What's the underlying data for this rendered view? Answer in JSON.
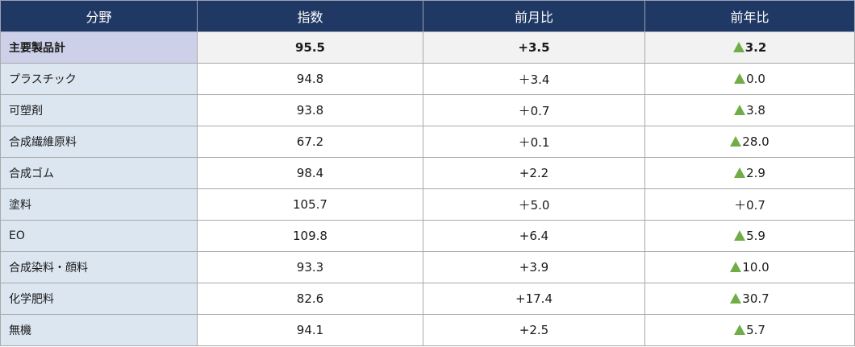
{
  "table": {
    "headers": [
      "分野",
      "指数",
      "前月比",
      "前年比"
    ],
    "rows": [
      {
        "name": "主要製品計",
        "index": "95.5",
        "mom": "+3.5",
        "yoy": "3.2",
        "yoy_up": true,
        "total": true
      },
      {
        "name": "プラスチック",
        "index": "94.8",
        "mom": "＋3.4",
        "yoy": "0.0",
        "yoy_up": true
      },
      {
        "name": "可塑剤",
        "index": "93.8",
        "mom": "＋0.7",
        "yoy": "3.8",
        "yoy_up": true
      },
      {
        "name": "合成繊維原料",
        "index": "67.2",
        "mom": "＋0.1",
        "yoy": "28.0",
        "yoy_up": true
      },
      {
        "name": "合成ゴム",
        "index": "98.4",
        "mom": "+2.2",
        "yoy": "2.9",
        "yoy_up": true
      },
      {
        "name": "塗料",
        "index": "105.7",
        "mom": "＋5.0",
        "yoy": "＋0.7",
        "yoy_up": false
      },
      {
        "name": "EO",
        "index": "109.8",
        "mom": "+6.4",
        "yoy": "5.9",
        "yoy_up": true
      },
      {
        "name": "合成染料・顔料",
        "index": "93.3",
        "mom": "+3.9",
        "yoy": "10.0",
        "yoy_up": true
      },
      {
        "name": "化学肥料",
        "index": "82.6",
        "mom": "+17.4",
        "yoy": "30.7",
        "yoy_up": true
      },
      {
        "name": "無機",
        "index": "94.1",
        "mom": "+2.5",
        "yoy": "5.7",
        "yoy_up": true
      }
    ]
  },
  "colors": {
    "header_bg": "#1f3864",
    "label_bg": "#dce6f1",
    "total_label_bg": "#ccd0e8",
    "total_row_bg": "#f2f2f2",
    "triangle": "#70ad47"
  },
  "icons": {
    "yoy_marker": "green-up-triangle-icon"
  }
}
